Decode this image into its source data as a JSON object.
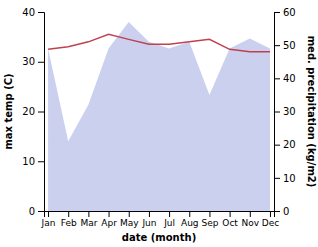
{
  "chart_data": {
    "type": "line",
    "xlabel": "date (month)",
    "ylabel": "max temp (C)",
    "y2label": "med. precipitation (kg/m2)",
    "categories": [
      "Jan",
      "Feb",
      "Mar",
      "Apr",
      "May",
      "Jun",
      "Jul",
      "Aug",
      "Sep",
      "Oct",
      "Nov",
      "Dec"
    ],
    "series": [
      {
        "type": "area",
        "axis": "y2",
        "color": "#b8c0e8",
        "values": [
          49,
          21,
          32,
          49,
          57,
          51,
          49,
          51,
          35,
          49,
          52,
          49
        ]
      },
      {
        "type": "line",
        "color": "#c04050",
        "values": [
          32.5,
          33.0,
          34.0,
          35.5,
          34.5,
          33.5,
          33.5,
          34.0,
          34.5,
          32.5,
          32.0,
          32.0
        ]
      }
    ],
    "ylim": [
      0,
      40
    ],
    "yticks": [
      0,
      10,
      20,
      30,
      40
    ],
    "y2lim": [
      0,
      60
    ],
    "y2ticks": [
      0,
      10,
      20,
      30,
      40,
      50,
      60
    ],
    "grid": false
  }
}
